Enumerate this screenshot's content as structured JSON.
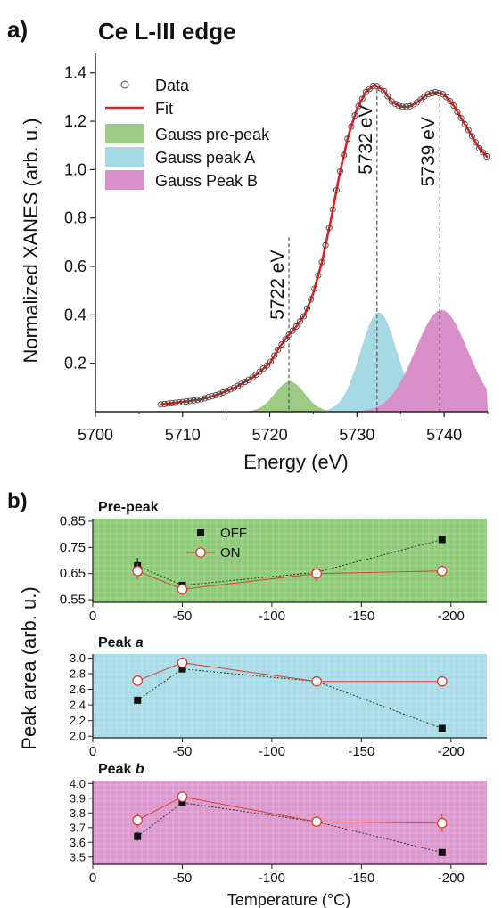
{
  "chart_data": [
    {
      "type": "line",
      "panel_label": "a)",
      "title": "Ce L-III edge",
      "xlabel": "Energy (eV)",
      "ylabel": "Normalized XANES (arb. u.)",
      "xlim": [
        5700,
        5745
      ],
      "ylim": [
        0,
        1.48
      ],
      "x_ticks": [
        5700,
        5710,
        5720,
        5730,
        5740
      ],
      "y_ticks": [
        0.2,
        0.4,
        0.6,
        0.8,
        1.0,
        1.2,
        1.4
      ],
      "legend": [
        "Data",
        "Fit",
        "Gauss pre-peak",
        "Gauss peak A",
        "Gauss Peak B"
      ],
      "legend_position": "top-left",
      "colors": {
        "data": "#555555",
        "fit": "#e02020",
        "pre_peak": "#9ccc84",
        "peak_a": "#a5d9e4",
        "peak_b": "#d98fc8"
      },
      "vertical_markers": [
        {
          "x": 5722,
          "label": "5722 eV"
        },
        {
          "x": 5732,
          "label": "5732 eV"
        },
        {
          "x": 5739,
          "label": "5739 eV"
        }
      ],
      "series": [
        {
          "name": "Data",
          "x": [
            5707.5,
            5710,
            5712,
            5714,
            5716,
            5718,
            5720,
            5721,
            5722,
            5723,
            5724,
            5725,
            5726,
            5727,
            5728,
            5729,
            5730,
            5731,
            5732,
            5733,
            5734,
            5735,
            5736,
            5737,
            5738,
            5739,
            5740,
            5741,
            5742,
            5743,
            5744,
            5745
          ],
          "y": [
            0.03,
            0.04,
            0.05,
            0.07,
            0.1,
            0.14,
            0.2,
            0.26,
            0.31,
            0.35,
            0.4,
            0.49,
            0.62,
            0.79,
            0.98,
            1.14,
            1.25,
            1.32,
            1.35,
            1.33,
            1.28,
            1.26,
            1.26,
            1.28,
            1.31,
            1.32,
            1.31,
            1.27,
            1.21,
            1.15,
            1.09,
            1.05
          ]
        },
        {
          "name": "Gauss pre-peak",
          "center": 5722.3,
          "amplitude": 0.125,
          "sigma": 1.7
        },
        {
          "name": "Gauss peak A",
          "center": 5732.5,
          "amplitude": 0.41,
          "sigma": 2.1
        },
        {
          "name": "Gauss Peak B",
          "center": 5739.7,
          "amplitude": 0.42,
          "sigma": 3.0
        }
      ]
    },
    {
      "type": "line",
      "panel_label": "b)",
      "ylabel": "Peak area (arb. u.)",
      "xlabel": "Temperature (°C)",
      "xlim": [
        0,
        -220
      ],
      "x_ticks": [
        0,
        -50,
        -100,
        -150,
        -200
      ],
      "legend": [
        "OFF",
        "ON"
      ],
      "legend_position": "top-left",
      "panels": [
        {
          "title": "Pre-peak",
          "title_emphasis": "",
          "background": "#8ecb78",
          "ylim": [
            0.54,
            0.86
          ],
          "y_ticks": [
            0.55,
            0.65,
            0.75,
            0.85
          ],
          "x": [
            -25,
            -50,
            -125,
            -195
          ],
          "off": [
            0.68,
            0.605,
            0.655,
            0.78
          ],
          "off_err": [
            0.03,
            0.01,
            0.01,
            0.01
          ],
          "on": [
            0.66,
            0.59,
            0.65,
            0.66
          ],
          "on_err": [
            0.03,
            0.015,
            0.03,
            0.01
          ]
        },
        {
          "title": "Peak ",
          "title_emphasis": "a",
          "background": "#a8dbe8",
          "ylim": [
            1.98,
            3.05
          ],
          "y_ticks": [
            2.0,
            2.2,
            2.4,
            2.6,
            2.8,
            3.0
          ],
          "x": [
            -25,
            -50,
            -125,
            -195
          ],
          "off": [
            2.46,
            2.86,
            2.7,
            2.1
          ],
          "off_err": [
            0.02,
            0.02,
            0.02,
            0.02
          ],
          "on": [
            2.71,
            2.94,
            2.7,
            2.7
          ],
          "on_err": [
            0.02,
            0.02,
            0.02,
            0.02
          ]
        },
        {
          "title": "Peak ",
          "title_emphasis": "b",
          "background": "#dc98ce",
          "ylim": [
            3.45,
            4.02
          ],
          "y_ticks": [
            3.5,
            3.6,
            3.7,
            3.8,
            3.9,
            4.0
          ],
          "x": [
            -25,
            -50,
            -125,
            -195
          ],
          "off": [
            3.64,
            3.87,
            3.74,
            3.53
          ],
          "off_err": [
            0.03,
            0.02,
            0.02,
            0.02
          ],
          "on": [
            3.75,
            3.91,
            3.74,
            3.73
          ],
          "on_err": [
            0.05,
            0.02,
            0.03,
            0.06
          ]
        }
      ]
    }
  ]
}
